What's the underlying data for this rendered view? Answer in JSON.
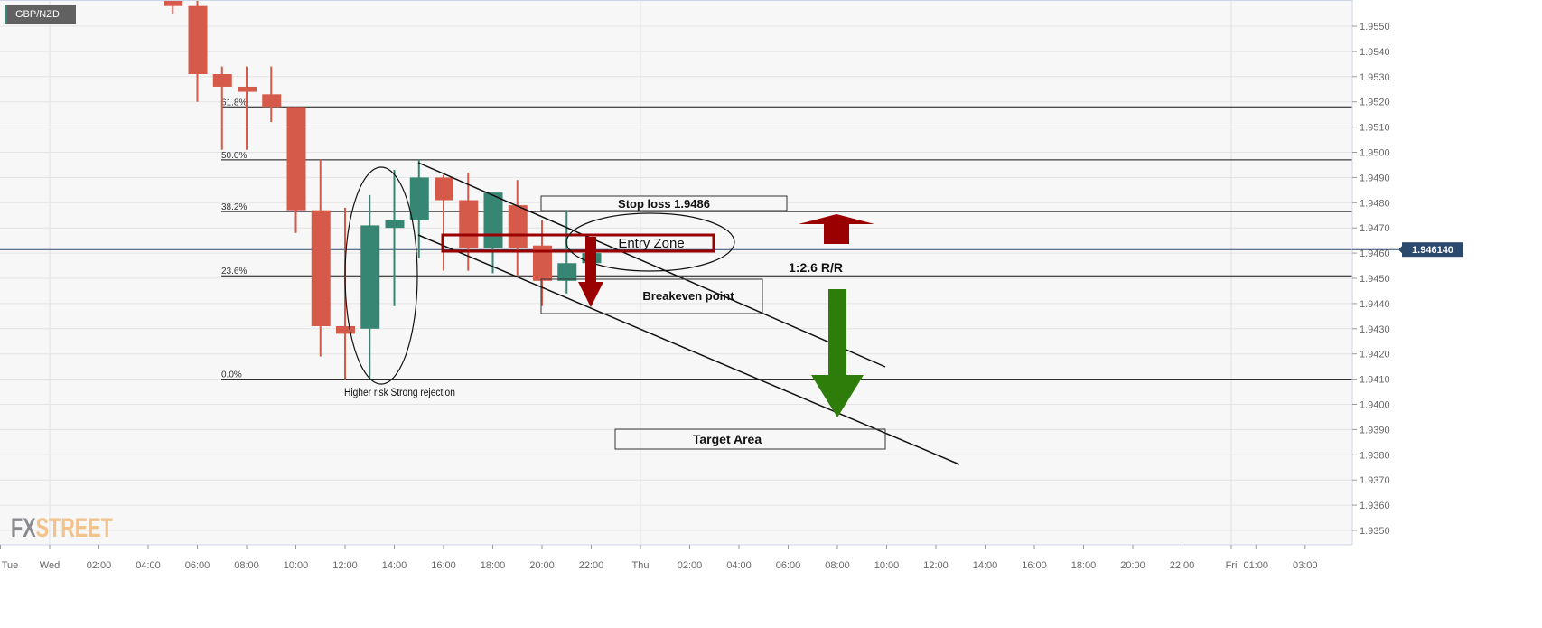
{
  "symbol": "GBP/NZD",
  "logo": {
    "part1": "FX",
    "part2": "STREET"
  },
  "colors": {
    "bullish": "#378673",
    "bearish": "#d55a4a",
    "background": "#f7f7f7",
    "current_price_label": "#2c4a6e",
    "entry_zone": "#9b0000",
    "stop_arrow": "#9b0000",
    "target_arrow": "#2e7d0a"
  },
  "chart_data": {
    "type": "candlestick",
    "title": "GBP/NZD",
    "timeframe": "1 hour",
    "ylim": [
      1.9343,
      1.956
    ],
    "y_ticks": [
      "1.9550",
      "1.9540",
      "1.9530",
      "1.9520",
      "1.9510",
      "1.9500",
      "1.9490",
      "1.9480",
      "1.9470",
      "1.9460",
      "1.9450",
      "1.9440",
      "1.9430",
      "1.9420",
      "1.9410",
      "1.9400",
      "1.9390",
      "1.9380",
      "1.9370",
      "1.9360",
      "1.9350"
    ],
    "x_ticks": [
      {
        "label": "Tue",
        "hour": -2
      },
      {
        "label": "Wed",
        "hour": 0
      },
      {
        "label": "02:00",
        "hour": 2
      },
      {
        "label": "04:00",
        "hour": 4
      },
      {
        "label": "06:00",
        "hour": 6
      },
      {
        "label": "08:00",
        "hour": 8
      },
      {
        "label": "10:00",
        "hour": 10
      },
      {
        "label": "12:00",
        "hour": 12
      },
      {
        "label": "14:00",
        "hour": 14
      },
      {
        "label": "16:00",
        "hour": 16
      },
      {
        "label": "18:00",
        "hour": 18
      },
      {
        "label": "20:00",
        "hour": 20
      },
      {
        "label": "22:00",
        "hour": 22
      },
      {
        "label": "Thu",
        "hour": 24
      },
      {
        "label": "02:00",
        "hour": 26
      },
      {
        "label": "04:00",
        "hour": 28
      },
      {
        "label": "06:00",
        "hour": 30
      },
      {
        "label": "08:00",
        "hour": 32
      },
      {
        "label": "10:00",
        "hour": 34
      },
      {
        "label": "12:00",
        "hour": 36
      },
      {
        "label": "14:00",
        "hour": 38
      },
      {
        "label": "16:00",
        "hour": 40
      },
      {
        "label": "18:00",
        "hour": 42
      },
      {
        "label": "20:00",
        "hour": 44
      },
      {
        "label": "22:00",
        "hour": 46
      },
      {
        "label": "Fri",
        "hour": 48
      },
      {
        "label": "01:00",
        "hour": 49
      },
      {
        "label": "03:00",
        "hour": 51
      }
    ],
    "day_separators": [
      "Wed",
      "Thu",
      "Fri"
    ],
    "grid": true,
    "candles": [
      {
        "time": "Wed 05:00",
        "hour": 5,
        "open": 1.9561,
        "high": 1.9562,
        "low": 1.9555,
        "close": 1.9558
      },
      {
        "time": "Wed 06:00",
        "hour": 6,
        "open": 1.9558,
        "high": 1.9561,
        "low": 1.952,
        "close": 1.9531
      },
      {
        "time": "Wed 07:00",
        "hour": 7,
        "open": 1.9531,
        "high": 1.9534,
        "low": 1.9501,
        "close": 1.9526
      },
      {
        "time": "Wed 08:00",
        "hour": 8,
        "open": 1.9526,
        "high": 1.9534,
        "low": 1.9501,
        "close": 1.9524
      },
      {
        "time": "Wed 09:00",
        "hour": 9,
        "open": 1.9523,
        "high": 1.9534,
        "low": 1.9512,
        "close": 1.9518
      },
      {
        "time": "Wed 10:00",
        "hour": 10,
        "open": 1.9518,
        "high": 1.9518,
        "low": 1.9468,
        "close": 1.9477
      },
      {
        "time": "Wed 11:00",
        "hour": 11,
        "open": 1.9477,
        "high": 1.9497,
        "low": 1.9419,
        "close": 1.9431
      },
      {
        "time": "Wed 12:00",
        "hour": 12,
        "open": 1.9431,
        "high": 1.9478,
        "low": 1.941,
        "close": 1.9428
      },
      {
        "time": "Wed 13:00",
        "hour": 13,
        "open": 1.943,
        "high": 1.9483,
        "low": 1.941,
        "close": 1.9471
      },
      {
        "time": "Wed 14:00",
        "hour": 14,
        "open": 1.947,
        "high": 1.9493,
        "low": 1.9439,
        "close": 1.9473
      },
      {
        "time": "Wed 15:00",
        "hour": 15,
        "open": 1.9473,
        "high": 1.9497,
        "low": 1.9458,
        "close": 1.949
      },
      {
        "time": "Wed 16:00",
        "hour": 16,
        "open": 1.949,
        "high": 1.9491,
        "low": 1.9453,
        "close": 1.9481
      },
      {
        "time": "Wed 17:00",
        "hour": 17,
        "open": 1.9481,
        "high": 1.9492,
        "low": 1.9453,
        "close": 1.9462
      },
      {
        "time": "Wed 18:00",
        "hour": 18,
        "open": 1.9462,
        "high": 1.9484,
        "low": 1.9452,
        "close": 1.9484
      },
      {
        "time": "Wed 19:00",
        "hour": 19,
        "open": 1.9479,
        "high": 1.9489,
        "low": 1.9451,
        "close": 1.9462
      },
      {
        "time": "Wed 20:00",
        "hour": 20,
        "open": 1.9463,
        "high": 1.9473,
        "low": 1.9439,
        "close": 1.9449
      },
      {
        "time": "Wed 21:00",
        "hour": 21,
        "open": 1.9449,
        "high": 1.9477,
        "low": 1.9444,
        "close": 1.9456
      },
      {
        "time": "Wed 22:00",
        "hour": 22,
        "open": 1.9456,
        "high": 1.9461,
        "low": 1.9456,
        "close": 1.946
      }
    ],
    "current_price": {
      "value": 1.94614,
      "label": "1.946140"
    },
    "fibonacci": [
      {
        "label": "61.8%",
        "price": 1.9518
      },
      {
        "label": "50.0%",
        "price": 1.9497
      },
      {
        "label": "38.2%",
        "price": 1.94765
      },
      {
        "label": "23.6%",
        "price": 1.9451
      },
      {
        "label": "0.0%",
        "price": 1.941
      }
    ],
    "annotations": {
      "rejection": "Higher risk Strong rejection",
      "stop_loss": "Stop loss 1.9486",
      "entry_zone": "Entry Zone",
      "risk_reward": "1:2.6 R/R",
      "breakeven": "Breakeven point",
      "target": "Target Area"
    }
  }
}
